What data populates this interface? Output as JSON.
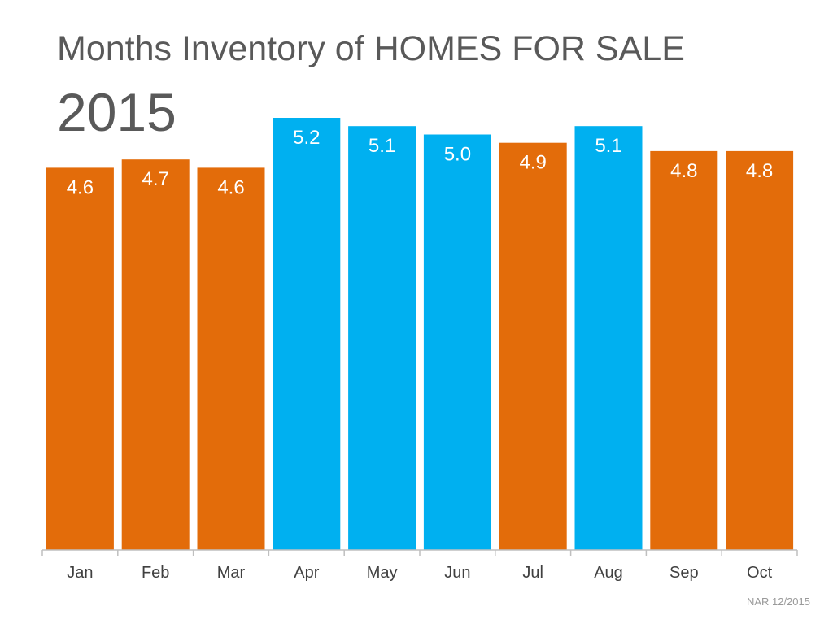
{
  "chart_data": {
    "type": "bar",
    "title": "Months Inventory of HOMES FOR SALE",
    "subtitle": "2015",
    "categories": [
      "Jan",
      "Feb",
      "Mar",
      "Apr",
      "May",
      "Jun",
      "Jul",
      "Aug",
      "Sep",
      "Oct"
    ],
    "values": [
      4.6,
      4.7,
      4.6,
      5.2,
      5.1,
      5.0,
      4.9,
      5.1,
      4.8,
      4.8
    ],
    "data_labels": [
      "4.6",
      "4.7",
      "4.6",
      "5.2",
      "5.1",
      "5.0",
      "4.9",
      "5.1",
      "4.8",
      "4.8"
    ],
    "highlighted": [
      false,
      false,
      false,
      true,
      true,
      true,
      false,
      true,
      false,
      false
    ],
    "xlabel": "",
    "ylabel": "",
    "ylim": [
      0,
      5.2
    ],
    "grid": false,
    "source": "NAR 12/2015"
  },
  "colors": {
    "bar_default": "#E36C0A",
    "bar_highlight": "#00B0F0",
    "axis": "#BFBFBF",
    "title_text": "#595959",
    "tick_text": "#404040",
    "source_text": "#9A9A9A"
  }
}
